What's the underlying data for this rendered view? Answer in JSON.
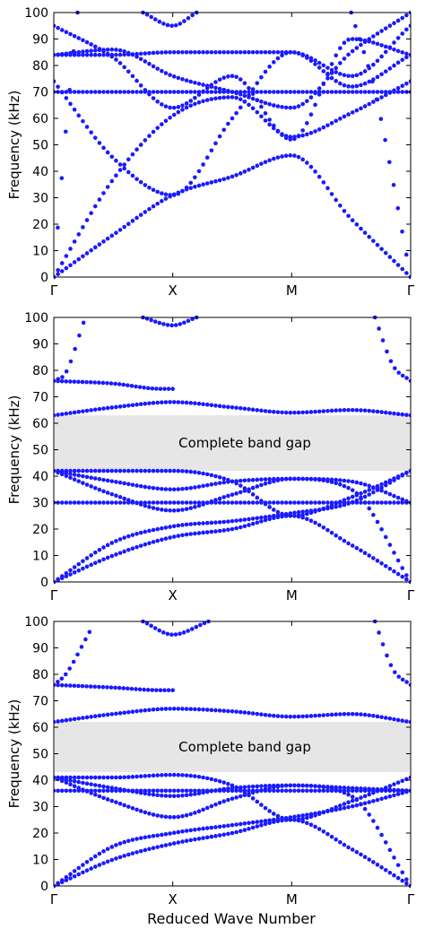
{
  "figure": {
    "xlabel": "Reduced Wave Number"
  },
  "style": {
    "point_color": "#1a1aff",
    "gap_fill": "#e6e6e6",
    "axis_color": "#000000"
  },
  "chart_data": [
    {
      "type": "scatter",
      "ylabel": "Frequency (kHz)",
      "ylim": [
        0,
        100
      ],
      "yticks": [
        0,
        10,
        20,
        30,
        40,
        50,
        60,
        70,
        80,
        90,
        100
      ],
      "xticks": [
        "Γ",
        "X",
        "M",
        "Γ"
      ],
      "xlim": [
        0,
        3
      ],
      "band_gap": null,
      "bands": [
        {
          "x": [
            0,
            0.5,
            1,
            1.5,
            2,
            2.5,
            3
          ],
          "y": [
            0,
            16,
            31,
            38,
            46,
            22,
            0
          ]
        },
        {
          "x": [
            0,
            0.5,
            1,
            1.5,
            2,
            2.5,
            3
          ],
          "y": [
            0,
            37,
            61,
            68,
            53,
            62,
            74
          ]
        },
        {
          "x": [
            0,
            0.5,
            1,
            1.5,
            2,
            2.5,
            3
          ],
          "y": [
            70,
            70,
            70,
            70,
            70,
            70,
            70
          ]
        },
        {
          "x": [
            0,
            0.5,
            1,
            1.5,
            2,
            2.5,
            3
          ],
          "y": [
            74,
            45,
            31,
            60,
            85,
            72,
            84
          ]
        },
        {
          "x": [
            0,
            0.5,
            1,
            1.5,
            2,
            2.5,
            3
          ],
          "y": [
            84,
            84,
            85,
            85,
            85,
            76,
            95
          ]
        },
        {
          "x": [
            0,
            0.5,
            1,
            1.5,
            2,
            2.5,
            3
          ],
          "y": [
            95,
            83,
            64,
            76,
            52,
            90,
            84
          ]
        },
        {
          "x": [
            0,
            0.5,
            1,
            1.5,
            2,
            2.5,
            3
          ],
          "y": [
            84,
            86,
            76,
            70,
            64,
            85,
            100
          ]
        },
        {
          "x": [
            0,
            0.1,
            0.2
          ],
          "y": [
            0,
            55,
            100
          ]
        },
        {
          "x": [
            0.75,
            1,
            1.2
          ],
          "y": [
            100,
            95,
            100
          ]
        },
        {
          "x": [
            2.5,
            2.7,
            3
          ],
          "y": [
            100,
            70,
            0
          ]
        }
      ]
    },
    {
      "type": "scatter",
      "ylabel": "Frequency (kHz)",
      "ylim": [
        0,
        100
      ],
      "yticks": [
        0,
        10,
        20,
        30,
        40,
        50,
        60,
        70,
        80,
        90,
        100
      ],
      "xticks": [
        "Γ",
        "X",
        "M",
        "Γ"
      ],
      "xlim": [
        0,
        3
      ],
      "band_gap": {
        "from": 42,
        "to": 63,
        "label": "Complete band gap"
      },
      "bands": [
        {
          "x": [
            0,
            0.5,
            1,
            1.5,
            2,
            2.5,
            3
          ],
          "y": [
            0,
            10,
            17,
            20,
            25,
            14,
            0
          ]
        },
        {
          "x": [
            0,
            0.5,
            1,
            1.5,
            2,
            2.5,
            3
          ],
          "y": [
            0,
            15,
            21,
            23,
            26,
            30,
            42
          ]
        },
        {
          "x": [
            0,
            0.5,
            1,
            1.5,
            2,
            2.5,
            3
          ],
          "y": [
            30,
            30,
            30,
            30,
            30,
            30,
            30
          ]
        },
        {
          "x": [
            0,
            0.5,
            1,
            1.5,
            2,
            2.5,
            3
          ],
          "y": [
            42,
            33,
            27,
            33,
            39,
            35,
            0
          ]
        },
        {
          "x": [
            0,
            0.5,
            1,
            1.5,
            2,
            2.5,
            3
          ],
          "y": [
            42,
            42,
            42,
            38,
            25,
            32,
            42
          ]
        },
        {
          "x": [
            0,
            0.5,
            1,
            1.5,
            2,
            2.5,
            3
          ],
          "y": [
            42,
            38,
            35,
            38,
            39,
            38,
            30
          ]
        },
        {
          "x": [
            0,
            0.5,
            1,
            1.5,
            2,
            2.5,
            3
          ],
          "y": [
            63,
            66,
            68,
            66,
            64,
            65,
            63
          ]
        },
        {
          "x": [
            0,
            0.5,
            0.9,
            1
          ],
          "y": [
            76,
            75,
            73,
            73
          ]
        },
        {
          "x": [
            0,
            0.1,
            0.25
          ],
          "y": [
            76,
            79,
            98
          ]
        },
        {
          "x": [
            0.75,
            1,
            1.2
          ],
          "y": [
            100,
            97,
            100
          ]
        },
        {
          "x": [
            2.7,
            2.85,
            3
          ],
          "y": [
            100,
            82,
            76
          ]
        }
      ]
    },
    {
      "type": "scatter",
      "ylabel": "Frequency (kHz)",
      "ylim": [
        0,
        100
      ],
      "yticks": [
        0,
        10,
        20,
        30,
        40,
        50,
        60,
        70,
        80,
        90,
        100
      ],
      "xticks": [
        "Γ",
        "X",
        "M",
        "Γ"
      ],
      "xlim": [
        0,
        3
      ],
      "band_gap": {
        "from": 43,
        "to": 62,
        "label": "Complete band gap"
      },
      "bands": [
        {
          "x": [
            0,
            0.5,
            1,
            1.5,
            2,
            2.5,
            3
          ],
          "y": [
            0,
            10,
            16,
            20,
            25,
            14,
            0
          ]
        },
        {
          "x": [
            0,
            0.5,
            1,
            1.5,
            2,
            2.5,
            3
          ],
          "y": [
            0,
            15,
            20,
            23,
            26,
            30,
            36
          ]
        },
        {
          "x": [
            0,
            0.5,
            1,
            1.5,
            2,
            2.5,
            3
          ],
          "y": [
            36,
            36,
            36,
            36,
            36,
            36,
            36
          ]
        },
        {
          "x": [
            0,
            0.5,
            1,
            1.5,
            2,
            2.5,
            3
          ],
          "y": [
            41,
            32,
            26,
            33,
            38,
            34,
            0
          ]
        },
        {
          "x": [
            0,
            0.5,
            1,
            1.5,
            2,
            2.5,
            3
          ],
          "y": [
            41,
            41,
            42,
            38,
            25,
            32,
            41
          ]
        },
        {
          "x": [
            0,
            0.5,
            1,
            1.5,
            2,
            2.5,
            3
          ],
          "y": [
            41,
            37,
            34,
            37,
            38,
            37,
            36
          ]
        },
        {
          "x": [
            0,
            0.5,
            1,
            1.5,
            2,
            2.5,
            3
          ],
          "y": [
            62,
            65,
            67,
            66,
            64,
            65,
            62
          ]
        },
        {
          "x": [
            0,
            0.5,
            0.9,
            1
          ],
          "y": [
            76,
            75,
            74,
            74
          ]
        },
        {
          "x": [
            0,
            0.1,
            0.3
          ],
          "y": [
            76,
            80,
            96
          ]
        },
        {
          "x": [
            0.75,
            1,
            1.3
          ],
          "y": [
            100,
            95,
            100
          ]
        },
        {
          "x": [
            2.7,
            2.85,
            3
          ],
          "y": [
            100,
            82,
            76
          ]
        }
      ]
    }
  ]
}
